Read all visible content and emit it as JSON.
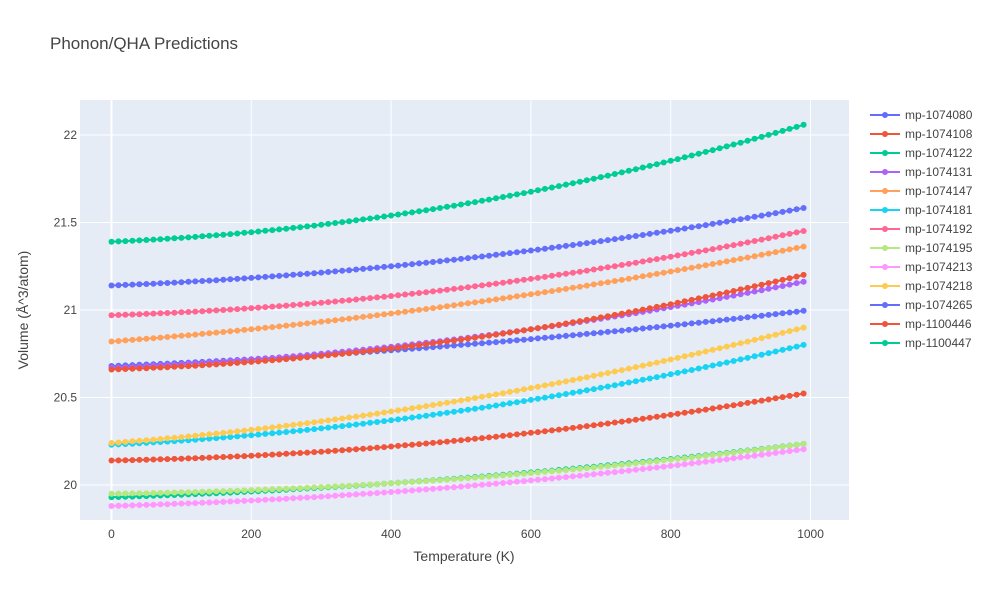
{
  "chart_data": {
    "type": "line",
    "title": "Phonon/QHA Predictions",
    "xlabel": "Temperature (K)",
    "ylabel": "Volume (Å^3/atom)",
    "xlim": [
      -45,
      1055
    ],
    "ylim": [
      19.8,
      22.2
    ],
    "xticks": [
      0,
      200,
      400,
      600,
      800,
      1000
    ],
    "yticks": [
      20,
      20.5,
      21,
      21.5,
      22
    ],
    "ytick_labels": [
      "20",
      "20.5",
      "21",
      "21.5",
      "22"
    ],
    "grid": true,
    "legend_position": "right",
    "x_start": 0,
    "x_end": 990,
    "n_points": 100,
    "series": [
      {
        "name": "mp-1074080",
        "color": "#636efa",
        "v0": 20.68,
        "v400": 20.77,
        "v1000": 21.0
      },
      {
        "name": "mp-1074108",
        "color": "#EF553B",
        "v0": 20.14,
        "v400": 20.22,
        "v1000": 20.53
      },
      {
        "name": "mp-1074122",
        "color": "#00cc96",
        "v0": 19.93,
        "v400": 20.01,
        "v1000": 20.24
      },
      {
        "name": "mp-1074131",
        "color": "#ab63fa",
        "v0": 20.67,
        "v400": 20.79,
        "v1000": 21.17
      },
      {
        "name": "mp-1074147",
        "color": "#FFA15A",
        "v0": 20.82,
        "v400": 20.98,
        "v1000": 21.37
      },
      {
        "name": "mp-1074181",
        "color": "#19d3f3",
        "v0": 20.23,
        "v400": 20.37,
        "v1000": 20.81
      },
      {
        "name": "mp-1074192",
        "color": "#FF6692",
        "v0": 20.97,
        "v400": 21.08,
        "v1000": 21.46
      },
      {
        "name": "mp-1074195",
        "color": "#B6E880",
        "v0": 19.95,
        "v400": 20.01,
        "v1000": 20.24
      },
      {
        "name": "mp-1074213",
        "color": "#FF97FF",
        "v0": 19.88,
        "v400": 19.96,
        "v1000": 20.21
      },
      {
        "name": "mp-1074218",
        "color": "#FECB52",
        "v0": 20.24,
        "v400": 20.42,
        "v1000": 20.91
      },
      {
        "name": "mp-1074265",
        "color": "#636efa",
        "v0": 21.14,
        "v400": 21.25,
        "v1000": 21.59
      },
      {
        "name": "mp-1100446",
        "color": "#EF553B",
        "v0": 20.66,
        "v400": 20.78,
        "v1000": 21.21
      },
      {
        "name": "mp-1100447",
        "color": "#00cc96",
        "v0": 21.39,
        "v400": 21.54,
        "v1000": 22.07
      }
    ]
  }
}
